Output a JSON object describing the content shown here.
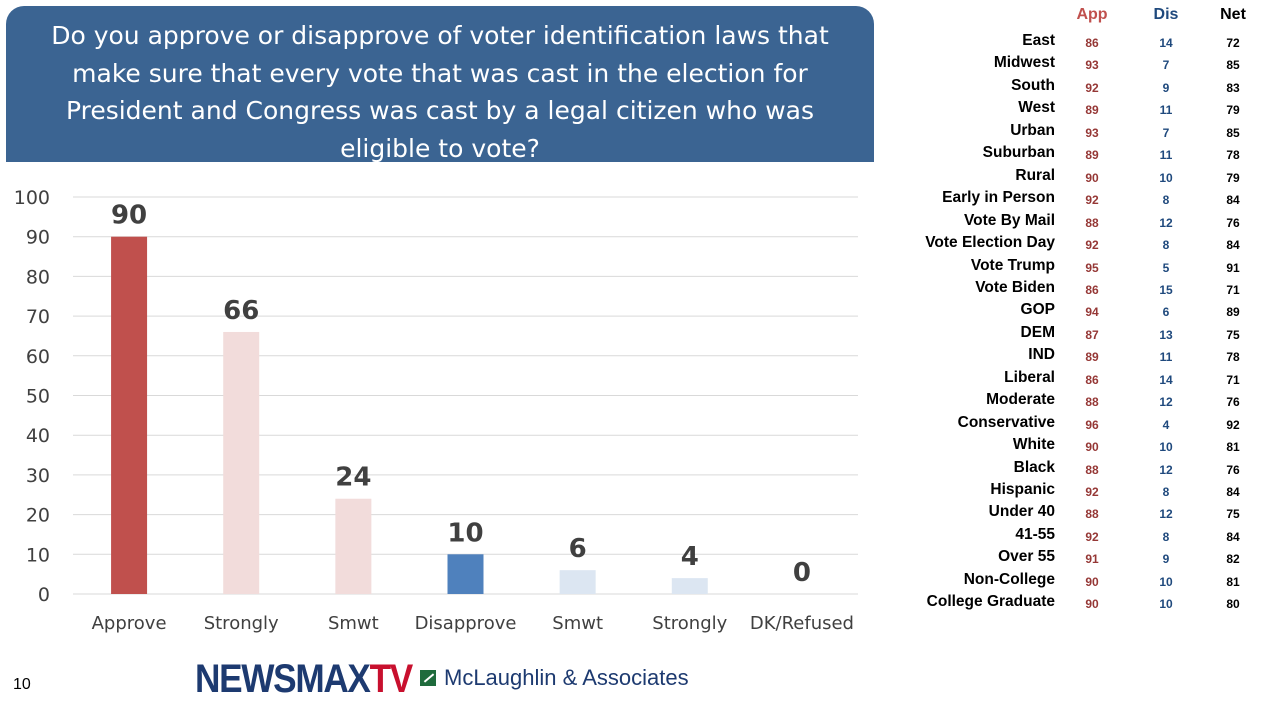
{
  "title": "Do you approve or disapprove of voter identification laws that make sure that every vote that was cast in the election for President and Congress was cast by a legal citizen who was eligible to vote?",
  "chart_data": {
    "type": "bar",
    "categories": [
      "Approve",
      "Strongly",
      "Smwt",
      "Disapprove",
      "Smwt",
      "Strongly",
      "DK/Refused"
    ],
    "values": [
      90,
      66,
      24,
      10,
      6,
      4,
      0
    ],
    "colors": [
      "#c0504d",
      "#f2dcdb",
      "#f2dcdb",
      "#4f81bd",
      "#dce6f2",
      "#dce6f2",
      "#dce6f2"
    ],
    "ylim": [
      0,
      100
    ],
    "yticks": [
      0,
      10,
      20,
      30,
      40,
      50,
      60,
      70,
      80,
      90,
      100
    ],
    "grid": true,
    "title": "",
    "xlabel": "",
    "ylabel": ""
  },
  "subgroups": {
    "headers": {
      "app": "App",
      "dis": "Dis",
      "net": "Net"
    },
    "header_colors": {
      "app": "#c0504d",
      "dis": "#1f497d",
      "net": "#000000"
    },
    "value_colors": {
      "app": "#953735",
      "dis": "#1f497d",
      "net": "#000000"
    },
    "rows": [
      {
        "label": "East",
        "app": "86",
        "dis": "14",
        "net": "72"
      },
      {
        "label": "Midwest",
        "app": "93",
        "dis": "7",
        "net": "85"
      },
      {
        "label": "South",
        "app": "92",
        "dis": "9",
        "net": "83"
      },
      {
        "label": "West",
        "app": "89",
        "dis": "11",
        "net": "79"
      },
      {
        "label": "Urban",
        "app": "93",
        "dis": "7",
        "net": "85"
      },
      {
        "label": "Suburban",
        "app": "89",
        "dis": "11",
        "net": "78"
      },
      {
        "label": "Rural",
        "app": "90",
        "dis": "10",
        "net": "79"
      },
      {
        "label": "Early in Person",
        "app": "92",
        "dis": "8",
        "net": "84"
      },
      {
        "label": "Vote By Mail",
        "app": "88",
        "dis": "12",
        "net": "76"
      },
      {
        "label": "Vote Election Day",
        "app": "92",
        "dis": "8",
        "net": "84"
      },
      {
        "label": "Vote Trump",
        "app": "95",
        "dis": "5",
        "net": "91"
      },
      {
        "label": "Vote Biden",
        "app": "86",
        "dis": "15",
        "net": "71"
      },
      {
        "label": "GOP",
        "app": "94",
        "dis": "6",
        "net": "89"
      },
      {
        "label": "DEM",
        "app": "87",
        "dis": "13",
        "net": "75"
      },
      {
        "label": "IND",
        "app": "89",
        "dis": "11",
        "net": "78"
      },
      {
        "label": "Liberal",
        "app": "86",
        "dis": "14",
        "net": "71"
      },
      {
        "label": "Moderate",
        "app": "88",
        "dis": "12",
        "net": "76"
      },
      {
        "label": "Conservative",
        "app": "96",
        "dis": "4",
        "net": "92"
      },
      {
        "label": "White",
        "app": "90",
        "dis": "10",
        "net": "81"
      },
      {
        "label": "Black",
        "app": "88",
        "dis": "12",
        "net": "76"
      },
      {
        "label": "Hispanic",
        "app": "92",
        "dis": "8",
        "net": "84"
      },
      {
        "label": "Under 40",
        "app": "88",
        "dis": "12",
        "net": "75"
      },
      {
        "label": "41-55",
        "app": "92",
        "dis": "8",
        "net": "84"
      },
      {
        "label": "Over 55",
        "app": "91",
        "dis": "9",
        "net": "82"
      },
      {
        "label": "Non-College",
        "app": "90",
        "dis": "10",
        "net": "81"
      },
      {
        "label": "College Graduate",
        "app": "90",
        "dis": "10",
        "net": "80"
      }
    ]
  },
  "footer": {
    "page_number": "10",
    "brand_newsmax": "NEWSMAX",
    "brand_tv": "TV",
    "brand_mclaughlin": "McLaughlin & Associates"
  }
}
